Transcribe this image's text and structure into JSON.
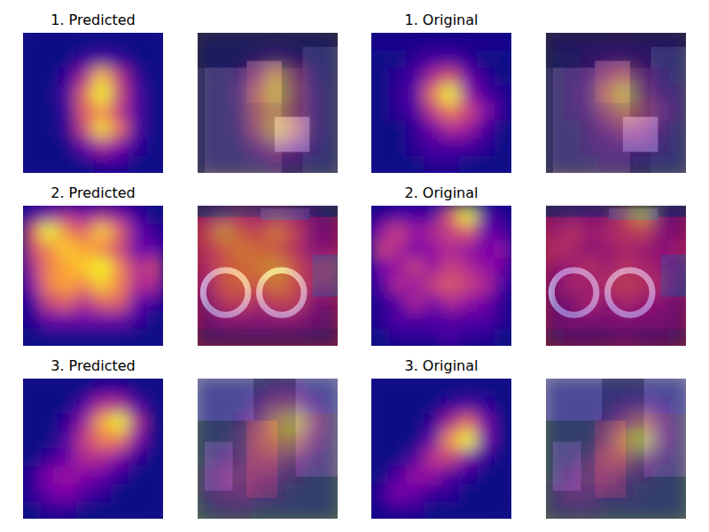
{
  "chart_data": [
    {
      "type": "heatmap",
      "title": "1. Predicted",
      "tick_labels": false,
      "cells": [
        [
          0,
          0,
          0,
          0,
          0,
          0,
          0,
          0
        ],
        [
          0,
          0,
          0,
          0.05,
          0.1,
          0.05,
          0,
          0
        ],
        [
          0,
          0,
          0.05,
          0.3,
          0.7,
          0.35,
          0.05,
          0
        ],
        [
          0,
          0,
          0.1,
          0.5,
          0.8,
          0.4,
          0.1,
          0
        ],
        [
          0,
          0,
          0.05,
          0.45,
          0.6,
          0.35,
          0.1,
          0
        ],
        [
          0,
          0,
          0.05,
          0.4,
          0.75,
          0.5,
          0.1,
          0
        ],
        [
          0,
          0,
          0,
          0.15,
          0.3,
          0.2,
          0.05,
          0
        ],
        [
          0,
          0,
          0,
          0,
          0.05,
          0.05,
          0,
          0
        ]
      ]
    },
    {
      "type": "heatmap",
      "title": "1. Original",
      "tick_labels": false,
      "cells": [
        [
          0.02,
          0.02,
          0.02,
          0.02,
          0.02,
          0.02,
          0.02,
          0.02
        ],
        [
          0,
          0,
          0.05,
          0.1,
          0.1,
          0.05,
          0,
          0
        ],
        [
          0,
          0.05,
          0.1,
          0.35,
          0.5,
          0.2,
          0.05,
          0
        ],
        [
          0,
          0.05,
          0.15,
          0.6,
          0.9,
          0.3,
          0.1,
          0.05
        ],
        [
          0,
          0.05,
          0.1,
          0.4,
          0.6,
          0.45,
          0.25,
          0.05
        ],
        [
          0,
          0,
          0.05,
          0.2,
          0.35,
          0.3,
          0.1,
          0
        ],
        [
          0,
          0,
          0.05,
          0.1,
          0.1,
          0.1,
          0.05,
          0
        ],
        [
          0,
          0,
          0,
          0.05,
          0.05,
          0,
          0,
          0
        ]
      ]
    },
    {
      "type": "heatmap",
      "title": "2. Predicted",
      "tick_labels": false,
      "cells": [
        [
          0.05,
          0.15,
          0.2,
          0.15,
          0.2,
          0.15,
          0.05,
          0
        ],
        [
          0.3,
          0.5,
          0.35,
          0.3,
          0.45,
          0.3,
          0.1,
          0.05
        ],
        [
          0.25,
          0.35,
          0.45,
          0.4,
          0.35,
          0.25,
          0.1,
          0.1
        ],
        [
          0.2,
          0.35,
          0.4,
          0.45,
          0.5,
          0.35,
          0.2,
          0.25
        ],
        [
          0.15,
          0.35,
          0.4,
          0.35,
          0.45,
          0.35,
          0.2,
          0.2
        ],
        [
          0.05,
          0.25,
          0.3,
          0.2,
          0.3,
          0.3,
          0.1,
          0.05
        ],
        [
          0.02,
          0.1,
          0.1,
          0.1,
          0.1,
          0.1,
          0.05,
          0
        ],
        [
          0,
          0,
          0,
          0,
          0,
          0,
          0,
          0
        ]
      ]
    },
    {
      "type": "heatmap",
      "title": "2. Original",
      "tick_labels": false,
      "cells": [
        [
          0.05,
          0.1,
          0.1,
          0.1,
          0.35,
          0.6,
          0.1,
          0.05
        ],
        [
          0.2,
          0.3,
          0.2,
          0.25,
          0.3,
          0.35,
          0.15,
          0.1
        ],
        [
          0.3,
          0.25,
          0.15,
          0.2,
          0.25,
          0.2,
          0.15,
          0.2
        ],
        [
          0.15,
          0.2,
          0.3,
          0.2,
          0.3,
          0.25,
          0.2,
          0.15
        ],
        [
          0.1,
          0.25,
          0.2,
          0.3,
          0.35,
          0.3,
          0.25,
          0.1
        ],
        [
          0.05,
          0.1,
          0.25,
          0.15,
          0.25,
          0.2,
          0.15,
          0.05
        ],
        [
          0.05,
          0.1,
          0.1,
          0.1,
          0.1,
          0.1,
          0.1,
          0.05
        ],
        [
          0.02,
          0.05,
          0.05,
          0.05,
          0.1,
          0.05,
          0.05,
          0.02
        ]
      ]
    },
    {
      "type": "heatmap",
      "title": "3. Predicted",
      "tick_labels": false,
      "cells": [
        [
          0,
          0,
          0,
          0,
          0.05,
          0.05,
          0,
          0
        ],
        [
          0,
          0,
          0,
          0.1,
          0.3,
          0.3,
          0.1,
          0
        ],
        [
          0,
          0,
          0.05,
          0.25,
          0.6,
          0.75,
          0.3,
          0
        ],
        [
          0,
          0,
          0.1,
          0.35,
          0.5,
          0.5,
          0.2,
          0
        ],
        [
          0,
          0.05,
          0.15,
          0.3,
          0.3,
          0.2,
          0.05,
          0
        ],
        [
          0.05,
          0.2,
          0.25,
          0.2,
          0.15,
          0.05,
          0,
          0
        ],
        [
          0.05,
          0.15,
          0.2,
          0.1,
          0.05,
          0,
          0,
          0
        ],
        [
          0,
          0.05,
          0.05,
          0,
          0,
          0,
          0,
          0
        ]
      ]
    },
    {
      "type": "heatmap",
      "title": "3. Original",
      "tick_labels": false,
      "cells": [
        [
          0,
          0,
          0,
          0,
          0,
          0,
          0,
          0
        ],
        [
          0,
          0,
          0,
          0,
          0.05,
          0.1,
          0.05,
          0
        ],
        [
          0,
          0,
          0,
          0.05,
          0.3,
          0.5,
          0.2,
          0
        ],
        [
          0,
          0,
          0,
          0.15,
          0.6,
          0.8,
          0.2,
          0
        ],
        [
          0,
          0,
          0.1,
          0.35,
          0.4,
          0.2,
          0.05,
          0
        ],
        [
          0,
          0.1,
          0.25,
          0.25,
          0.1,
          0.05,
          0,
          0
        ],
        [
          0.05,
          0.2,
          0.15,
          0.05,
          0.05,
          0,
          0,
          0
        ],
        [
          0.02,
          0.05,
          0.05,
          0,
          0,
          0,
          0,
          0
        ]
      ]
    }
  ]
}
